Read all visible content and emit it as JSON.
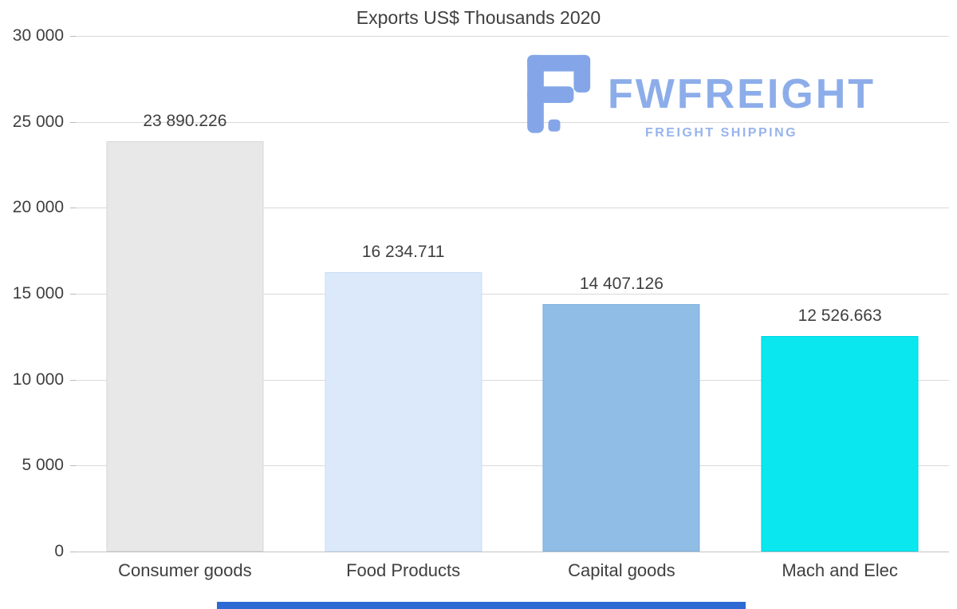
{
  "page": {
    "background": "#ffffff",
    "text_color": "#3f3f3f"
  },
  "chart_data": {
    "type": "bar",
    "title": "Exports US$ Thousands 2020",
    "categories": [
      "Consumer goods",
      "Food Products",
      "Capital goods",
      "Mach and Elec"
    ],
    "values": [
      23890.226,
      16234.711,
      14407.126,
      12526.663
    ],
    "value_labels": [
      "23 890.226",
      "16 234.711",
      "14 407.126",
      "12 526.663"
    ],
    "bar_colors": [
      "#e8e8e8",
      "#dbe9fb",
      "#8fbde5",
      "#0ae7ef"
    ],
    "bar_border_colors": [
      "#d7d7d7",
      "#c8ddf6",
      "#7fb1dd",
      "#00d5de"
    ],
    "ylim": [
      0,
      30000
    ],
    "ytick_step": 5000,
    "ytick_labels": [
      "0",
      "5 000",
      "10 000",
      "15 000",
      "20 000",
      "25 000",
      "30 000"
    ],
    "grid": true,
    "legend_position": "none",
    "xlabel": "",
    "ylabel": ""
  },
  "watermark": {
    "brand": "FWFREIGHT",
    "tagline": "FREIGHT SHIPPING",
    "brand_color": "#8cade9",
    "icon_color": "#84a6e8"
  },
  "accents": {
    "bottom_strip_color": "#2d6ad4",
    "gridline_color": "#d9d9d9"
  }
}
